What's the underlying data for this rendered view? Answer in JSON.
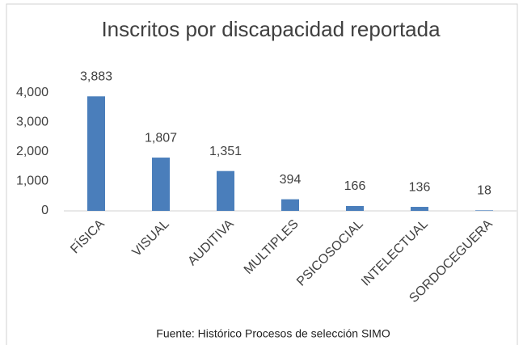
{
  "chart_data": {
    "type": "bar",
    "title": "Inscritos por discapacidad reportada",
    "categories": [
      "FÍSICA",
      "VISUAL",
      "AUDITIVA",
      "MULTIPLES",
      "PSICOSOCIAL",
      "INTELECTUAL",
      "SORDOCEGUERA"
    ],
    "values": [
      3883,
      1807,
      1351,
      394,
      166,
      136,
      18
    ],
    "value_labels": [
      "3,883",
      "1,807",
      "1,351",
      "394",
      "166",
      "136",
      "18"
    ],
    "color": "#4a7ebb",
    "ylim": [
      0,
      4000
    ],
    "yticks": [
      0,
      {
        "value": 1000,
        "label": "1,000"
      },
      {
        "value": 2000,
        "label": "2,000"
      },
      {
        "value": 3000,
        "label": "3,000"
      },
      {
        "value": 4000,
        "label": "4,000"
      }
    ],
    "grid": false,
    "source": "Fuente: Histórico Procesos de selección SIMO"
  }
}
